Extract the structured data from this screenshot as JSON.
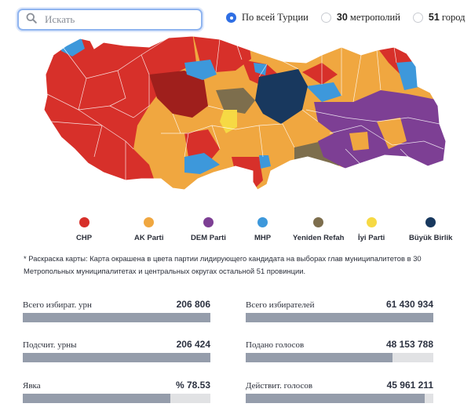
{
  "search": {
    "placeholder": "Искать"
  },
  "scope": {
    "options": [
      {
        "prefix": "",
        "label": "По всей Турции",
        "selected": true
      },
      {
        "prefix": "30",
        "label": " метрополий",
        "selected": false
      },
      {
        "prefix": "51",
        "label": " город",
        "selected": false
      }
    ]
  },
  "legend": [
    {
      "label": "CHP",
      "color": "#d7302a"
    },
    {
      "label": "AK Parti",
      "color": "#f0a740"
    },
    {
      "label": "DEM Parti",
      "color": "#7d3f94"
    },
    {
      "label": "MHP",
      "color": "#3d98db"
    },
    {
      "label": "Yeniden Refah",
      "color": "#7d6e4d"
    },
    {
      "label": "İyi Parti",
      "color": "#f6d944"
    },
    {
      "label": "Büyük Birlik",
      "color": "#18385e"
    }
  ],
  "note": "* Раскраска карты: Карта окрашена в цвета партии лидирующего кандидата на выборах глав муниципалитетов в 30 Метропольных муниципалитетах и центральных округах остальной 51 провинции.",
  "stats": {
    "ballot_boxes": {
      "label": "Всего избират. урн",
      "value": "206 806",
      "progress": 1.0
    },
    "voters": {
      "label": "Всего избирателей",
      "value": "61 430 934",
      "progress": 1.0
    },
    "counted_boxes": {
      "label": "Подсчит. урны",
      "value": "206 424",
      "progress": 0.998
    },
    "votes_cast": {
      "label": "Подано голосов",
      "value": "48 153 788",
      "progress": 0.784
    },
    "turnout": {
      "label": "Явка",
      "value": "% 78.53",
      "progress": 0.7853
    },
    "valid_votes": {
      "label": "Действит. голосов",
      "value": "45 961 211",
      "progress": 0.955
    }
  }
}
